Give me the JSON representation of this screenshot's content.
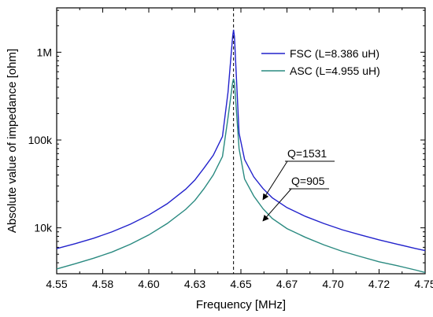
{
  "chart_data": {
    "type": "line",
    "title": "",
    "xlabel": "Frequency [MHz]",
    "ylabel": "Absolute value of impedance [ohm]",
    "xlim": [
      4.55,
      4.75
    ],
    "ylim": [
      3000,
      3200000
    ],
    "yscale": "log",
    "grid": false,
    "legend_position": "top-right",
    "x_ticks": [
      4.55,
      4.575,
      4.6,
      4.625,
      4.65,
      4.675,
      4.7,
      4.725,
      4.75
    ],
    "x_tick_labels": [
      "4.55",
      "4.58",
      "4.60",
      "4.63",
      "4.65",
      "4.67",
      "4.70",
      "4.72",
      "4.75"
    ],
    "y_ticks": [
      10000,
      100000,
      1000000
    ],
    "y_tick_labels": [
      "10k",
      "100k",
      "1M"
    ],
    "resonance_marker_x": 4.646,
    "series": [
      {
        "name": "FSC (L=8.386 uH)",
        "color": "#2222cc",
        "x": [
          4.55,
          4.56,
          4.57,
          4.58,
          4.59,
          4.6,
          4.61,
          4.62,
          4.625,
          4.63,
          4.635,
          4.64,
          4.643,
          4.6455,
          4.646,
          4.6465,
          4.649,
          4.652,
          4.657,
          4.662,
          4.667,
          4.675,
          4.685,
          4.695,
          4.705,
          4.715,
          4.725,
          4.735,
          4.745,
          4.75
        ],
        "y": [
          5800,
          6600,
          7600,
          9000,
          11000,
          14000,
          18800,
          27500,
          35000,
          48000,
          67000,
          110000,
          350000,
          1500000,
          1800000,
          1500000,
          120000,
          60000,
          38000,
          28000,
          22000,
          17000,
          13500,
          11200,
          9500,
          8300,
          7300,
          6500,
          5800,
          5500
        ]
      },
      {
        "name": "ASC (L=4.955 uH)",
        "color": "#2a8a80",
        "x": [
          4.55,
          4.56,
          4.57,
          4.58,
          4.59,
          4.6,
          4.61,
          4.62,
          4.625,
          4.63,
          4.635,
          4.64,
          4.643,
          4.6455,
          4.646,
          4.6465,
          4.649,
          4.652,
          4.657,
          4.662,
          4.667,
          4.675,
          4.685,
          4.695,
          4.705,
          4.715,
          4.725,
          4.735,
          4.745,
          4.75
        ],
        "y": [
          3400,
          3900,
          4500,
          5300,
          6500,
          8300,
          11200,
          16200,
          20500,
          28000,
          40000,
          65000,
          180000,
          450000,
          500000,
          450000,
          80000,
          36000,
          23000,
          16500,
          12800,
          9800,
          7800,
          6400,
          5400,
          4700,
          4100,
          3700,
          3300,
          3100
        ]
      }
    ],
    "annotations": [
      {
        "text": "Q=1531",
        "arrow_target_x": 4.662,
        "arrow_target_y": 21000
      },
      {
        "text": "Q=905",
        "arrow_target_x": 4.662,
        "arrow_target_y": 12000
      }
    ]
  }
}
